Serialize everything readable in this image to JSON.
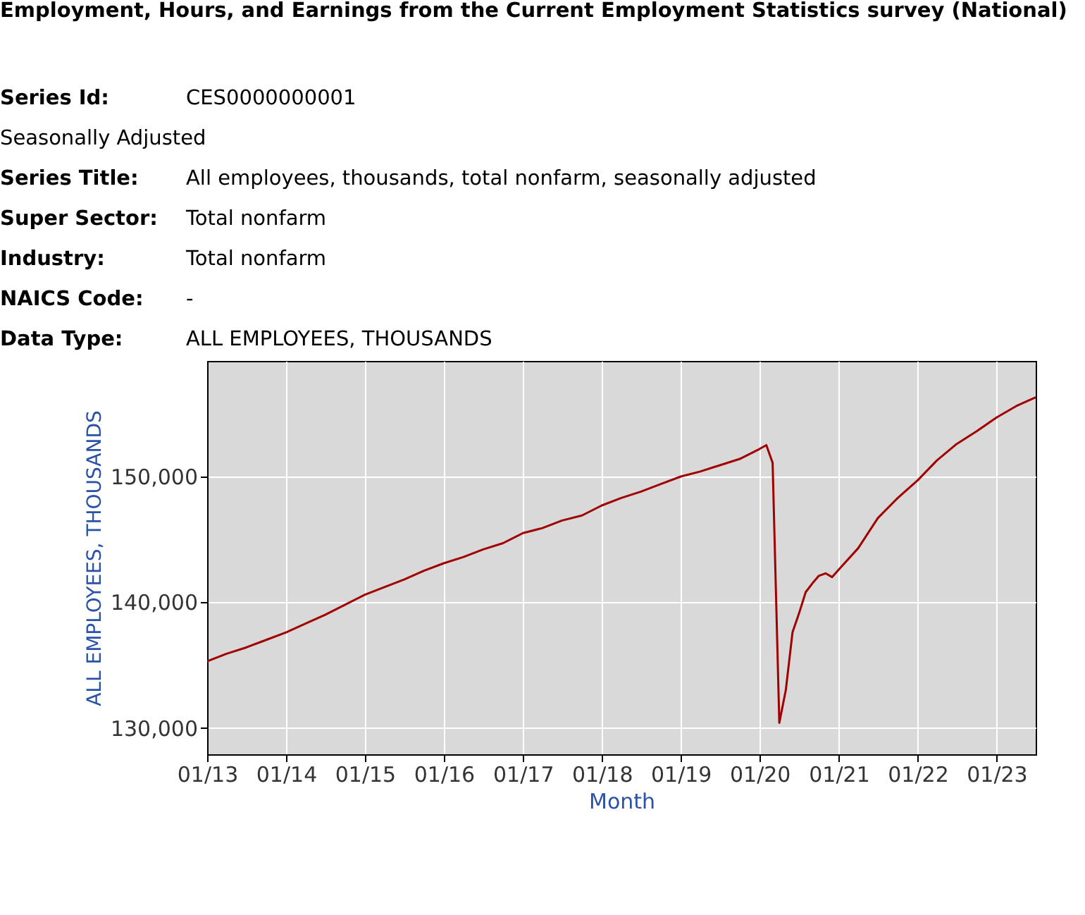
{
  "chart_data": {
    "type": "line",
    "title": "Employment, Hours, and Earnings from the Current Employment Statistics survey (National)",
    "annotations": [
      "Series Id: CES0000000001",
      "Seasonally Adjusted",
      "Series Title: All employees, thousands, total nonfarm, seasonally adjusted",
      "Super Sector: Total nonfarm",
      "Industry: Total nonfarm",
      "NAICS Code: -",
      "Data Type: ALL EMPLOYEES, THOUSANDS"
    ],
    "xlabel": "Month",
    "ylabel": "ALL EMPLOYEES, THOUSANDS",
    "x": [
      "2013-01",
      "2013-04",
      "2013-07",
      "2013-10",
      "2014-01",
      "2014-04",
      "2014-07",
      "2014-10",
      "2015-01",
      "2015-04",
      "2015-07",
      "2015-10",
      "2016-01",
      "2016-04",
      "2016-07",
      "2016-10",
      "2017-01",
      "2017-04",
      "2017-07",
      "2017-10",
      "2018-01",
      "2018-04",
      "2018-07",
      "2018-10",
      "2019-01",
      "2019-04",
      "2019-07",
      "2019-10",
      "2020-01",
      "2020-02",
      "2020-03",
      "2020-04",
      "2020-05",
      "2020-06",
      "2020-07",
      "2020-08",
      "2020-09",
      "2020-10",
      "2020-11",
      "2020-12",
      "2021-01",
      "2021-04",
      "2021-07",
      "2021-10",
      "2022-01",
      "2022-04",
      "2022-07",
      "2022-10",
      "2023-01",
      "2023-04",
      "2023-07"
    ],
    "series": [
      {
        "color": "#a00000",
        "values": [
          135300,
          135900,
          136400,
          137000,
          137600,
          138300,
          139000,
          139800,
          140600,
          141200,
          141800,
          142500,
          143100,
          143600,
          144200,
          144700,
          145500,
          145900,
          146500,
          146900,
          147700,
          148300,
          148800,
          149400,
          150000,
          150400,
          150900,
          151400,
          152200,
          152500,
          151100,
          130400,
          133000,
          137600,
          139100,
          140800,
          141500,
          142100,
          142300,
          142000,
          142600,
          144300,
          146700,
          148300,
          149700,
          151300,
          152600,
          153600,
          154700,
          155600,
          156300
        ]
      }
    ],
    "xlim": [
      "2013-01",
      "2023-07"
    ],
    "xticks": [
      {
        "value": "2013-01",
        "label": "01/13"
      },
      {
        "value": "2014-01",
        "label": "01/14"
      },
      {
        "value": "2015-01",
        "label": "01/15"
      },
      {
        "value": "2016-01",
        "label": "01/16"
      },
      {
        "value": "2017-01",
        "label": "01/17"
      },
      {
        "value": "2018-01",
        "label": "01/18"
      },
      {
        "value": "2019-01",
        "label": "01/19"
      },
      {
        "value": "2020-01",
        "label": "01/20"
      },
      {
        "value": "2021-01",
        "label": "01/21"
      },
      {
        "value": "2022-01",
        "label": "01/22"
      },
      {
        "value": "2023-01",
        "label": "01/23"
      }
    ],
    "ylim": [
      127900,
      159200
    ],
    "yticks": [
      {
        "value": 130000,
        "label": "130,000"
      },
      {
        "value": 140000,
        "label": "140,000"
      },
      {
        "value": 150000,
        "label": "150,000"
      }
    ],
    "grid": true,
    "marker": "none",
    "line_style": "solid"
  }
}
